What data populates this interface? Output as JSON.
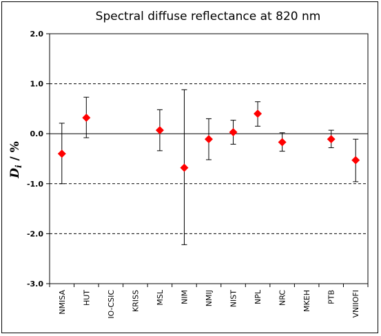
{
  "chart_data": {
    "type": "scatter",
    "title": "Spectral diffuse reflectance at 820 nm",
    "ylabel_main": "D",
    "ylabel_sub": "i",
    "ylabel_rest": " / %",
    "ylim": [
      -3.0,
      2.0
    ],
    "yticks": [
      2.0,
      1.0,
      0.0,
      -1.0,
      -2.0,
      -3.0
    ],
    "ytick_labels": [
      "2.0",
      "1.0",
      "0.0",
      "-1.0",
      "-2.0",
      "-3.0"
    ],
    "dashed_grid_at": [
      1.0,
      -1.0,
      -2.0
    ],
    "marker_color": "#ff0000",
    "categories": [
      "NMISA",
      "HUT",
      "IO-CSIC",
      "KRISS",
      "MSL",
      "NIM",
      "NMIJ",
      "NIST",
      "NPL",
      "NRC",
      "MKEH",
      "PTB",
      "VNIIOFI"
    ],
    "points": [
      {
        "category": "NMISA",
        "value": -0.4,
        "low": -1.0,
        "high": 0.21
      },
      {
        "category": "HUT",
        "value": 0.32,
        "low": -0.08,
        "high": 0.73
      },
      {
        "category": "MSL",
        "value": 0.07,
        "low": -0.34,
        "high": 0.48
      },
      {
        "category": "NIM",
        "value": -0.68,
        "low": -2.22,
        "high": 0.88
      },
      {
        "category": "NMIJ",
        "value": -0.11,
        "low": -0.52,
        "high": 0.3
      },
      {
        "category": "NIST",
        "value": 0.03,
        "low": -0.21,
        "high": 0.27
      },
      {
        "category": "NPL",
        "value": 0.4,
        "low": 0.15,
        "high": 0.64
      },
      {
        "category": "NRC",
        "value": -0.17,
        "low": -0.35,
        "high": 0.02
      },
      {
        "category": "PTB",
        "value": -0.11,
        "low": -0.28,
        "high": 0.07
      },
      {
        "category": "VNIIOFI",
        "value": -0.53,
        "low": -0.96,
        "high": -0.11
      }
    ]
  }
}
